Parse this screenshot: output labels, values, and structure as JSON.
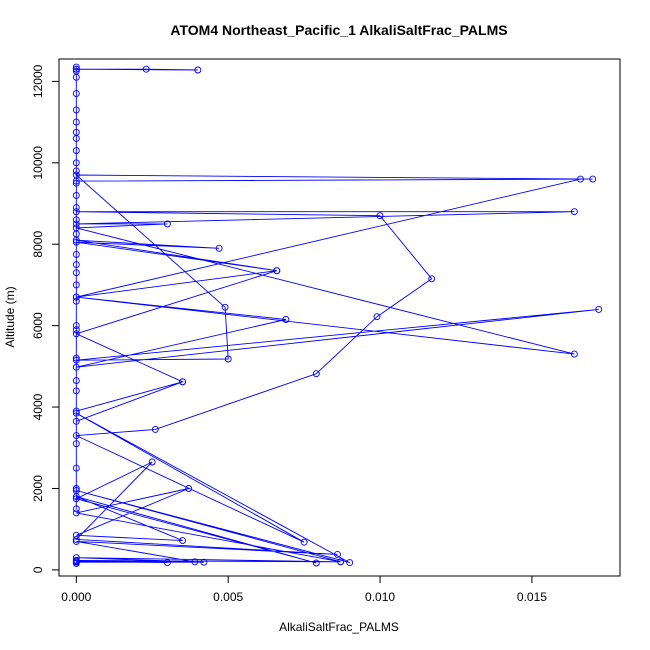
{
  "chart_data": {
    "type": "line",
    "title": "ATOM4 Northeast_Pacific_1 AlkaliSaltFrac_PALMS",
    "xlabel": "AlkaliSaltFrac_PALMS",
    "ylabel": "Altitude (m)",
    "xlim": [
      -0.00057,
      0.0179
    ],
    "ylim": [
      -150,
      12550
    ],
    "xticks": [
      0,
      0.005,
      0.01,
      0.015
    ],
    "xtick_labels": [
      "0.000",
      "0.005",
      "0.010",
      "0.015"
    ],
    "yticks": [
      0,
      2000,
      4000,
      6000,
      8000,
      10000,
      12000
    ],
    "ytick_labels": [
      "0",
      "2000",
      "4000",
      "6000",
      "8000",
      "10000",
      "12000"
    ],
    "grid": false,
    "legend": "none",
    "color": "#0000ff",
    "series": [
      {
        "points": [
          [
            0,
            160
          ],
          [
            0,
            190
          ],
          [
            0.0042,
            190
          ],
          [
            0,
            210
          ],
          [
            0.003,
            180
          ],
          [
            0,
            230
          ],
          [
            0.0087,
            200
          ],
          [
            0,
            300
          ],
          [
            0.0039,
            200
          ],
          [
            0,
            700
          ],
          [
            0.0086,
            380
          ],
          [
            0,
            750
          ],
          [
            0.0025,
            2650
          ],
          [
            0,
            1750
          ],
          [
            0.0079,
            170
          ],
          [
            0,
            1800
          ],
          [
            0.0035,
            720
          ],
          [
            0,
            850
          ],
          [
            0.0037,
            2000
          ],
          [
            0,
            1400
          ],
          [
            0.0087,
            200
          ],
          [
            0,
            1950
          ],
          [
            0.009,
            180
          ],
          [
            0,
            3850
          ],
          [
            0.0075,
            680
          ],
          [
            0,
            3300
          ],
          [
            0.0026,
            3450
          ],
          [
            0.0079,
            4820
          ],
          [
            0.0099,
            6220
          ],
          [
            0.0117,
            7150
          ],
          [
            0.01,
            8700
          ],
          [
            0,
            8800
          ],
          [
            0.0164,
            8800
          ],
          [
            0,
            8500
          ],
          [
            0.003,
            8500
          ],
          [
            0,
            8400
          ],
          [
            0.0164,
            5300
          ],
          [
            0,
            6700
          ],
          [
            0.0166,
            9600
          ],
          [
            0,
            9550
          ],
          [
            0.017,
            9600
          ],
          [
            0,
            9700
          ],
          [
            0.0049,
            6450
          ],
          [
            0.005,
            5180
          ],
          [
            0,
            5150
          ],
          [
            0.0172,
            6400
          ],
          [
            0,
            4980
          ],
          [
            0.0069,
            6150
          ],
          [
            0,
            6700
          ],
          [
            0.0066,
            7350
          ],
          [
            0,
            8050
          ],
          [
            0.0047,
            7900
          ],
          [
            0,
            8100
          ],
          [
            0.0066,
            7350
          ],
          [
            0,
            5800
          ],
          [
            0.0035,
            4620
          ],
          [
            0,
            3900
          ],
          [
            0.0035,
            4620
          ],
          [
            0,
            3650
          ],
          [
            0,
            3100
          ],
          [
            0,
            2500
          ],
          [
            0,
            1500
          ],
          [
            0,
            2000
          ],
          [
            0,
            4400
          ],
          [
            0,
            4650
          ],
          [
            0,
            5200
          ],
          [
            0,
            5900
          ],
          [
            0,
            6000
          ],
          [
            0,
            6600
          ],
          [
            0,
            7000
          ],
          [
            0,
            7300
          ],
          [
            0,
            7500
          ],
          [
            0,
            7750
          ],
          [
            0,
            8250
          ],
          [
            0,
            8600
          ],
          [
            0,
            8900
          ],
          [
            0,
            9200
          ],
          [
            0,
            9500
          ],
          [
            0,
            9800
          ],
          [
            0,
            10000
          ],
          [
            0,
            10300
          ],
          [
            0,
            10600
          ],
          [
            0,
            10750
          ],
          [
            0,
            11000
          ],
          [
            0,
            11300
          ],
          [
            0,
            11700
          ],
          [
            0,
            12100
          ],
          [
            0,
            12250
          ],
          [
            0,
            12300
          ],
          [
            0.0023,
            12300
          ],
          [
            0.004,
            12280
          ],
          [
            0,
            12300
          ],
          [
            0,
            12350
          ]
        ]
      }
    ]
  }
}
